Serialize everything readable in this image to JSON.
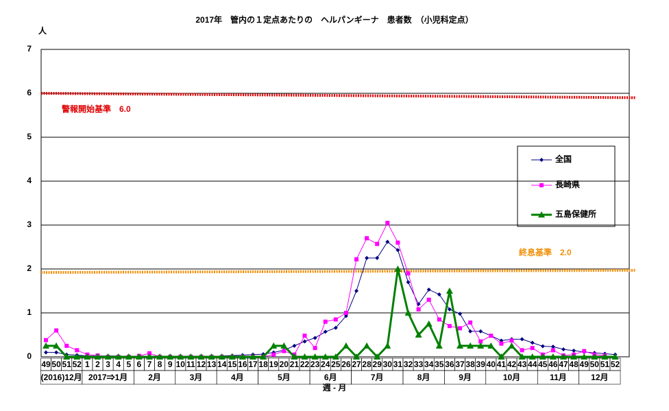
{
  "chart_data": {
    "type": "line",
    "title": "2017年　管内の１定点あたりの　ヘルパンギーナ　患者数　（小児科定点）",
    "y_label": "人",
    "x_label": "週 - 月",
    "categories": [
      "49",
      "50",
      "51",
      "52",
      "1",
      "2",
      "3",
      "4",
      "5",
      "6",
      "7",
      "8",
      "9",
      "10",
      "11",
      "12",
      "13",
      "14",
      "15",
      "16",
      "17",
      "18",
      "19",
      "20",
      "21",
      "22",
      "23",
      "24",
      "25",
      "26",
      "27",
      "28",
      "29",
      "30",
      "31",
      "32",
      "33",
      "34",
      "35",
      "36",
      "37",
      "38",
      "39",
      "40",
      "41",
      "42",
      "43",
      "44",
      "45",
      "46",
      "47",
      "48",
      "49",
      "50",
      "51",
      "52"
    ],
    "month_groups": [
      {
        "label": "(2016)12月",
        "weeks": 4
      },
      {
        "label": "2017⇒1月",
        "weeks": 5
      },
      {
        "label": "2月",
        "weeks": 4
      },
      {
        "label": "3月",
        "weeks": 4
      },
      {
        "label": "4月",
        "weeks": 4
      },
      {
        "label": "5月",
        "weeks": 5
      },
      {
        "label": "6月",
        "weeks": 4
      },
      {
        "label": "7月",
        "weeks": 5
      },
      {
        "label": "8月",
        "weeks": 4
      },
      {
        "label": "9月",
        "weeks": 4
      },
      {
        "label": "10月",
        "weeks": 5
      },
      {
        "label": "11月",
        "weeks": 4
      },
      {
        "label": "12月",
        "weeks": 4
      }
    ],
    "series": [
      {
        "name": "全国",
        "color": "#000080",
        "marker": "diamond",
        "values": [
          0.1,
          0.1,
          0.05,
          0.04,
          0.02,
          0.02,
          0.02,
          0.02,
          0.01,
          0.01,
          0.01,
          0.01,
          0.01,
          0.01,
          0.01,
          0.01,
          0.01,
          0.02,
          0.03,
          0.04,
          0.05,
          0.06,
          0.1,
          0.15,
          0.25,
          0.35,
          0.43,
          0.57,
          0.66,
          0.93,
          1.5,
          2.25,
          2.25,
          2.62,
          2.43,
          1.7,
          1.2,
          1.53,
          1.42,
          1.08,
          0.98,
          0.58,
          0.58,
          0.48,
          0.37,
          0.4,
          0.4,
          0.32,
          0.24,
          0.23,
          0.17,
          0.14,
          0.11,
          0.09,
          0.07,
          0.05
        ]
      },
      {
        "name": "長崎県",
        "color": "#ff00ff",
        "marker": "square",
        "values": [
          0.38,
          0.6,
          0.25,
          0.15,
          0.05,
          0.03,
          0,
          0,
          0,
          0.02,
          0.08,
          0,
          0,
          0,
          0,
          0,
          0,
          0,
          0,
          0,
          0,
          0,
          0.05,
          0.13,
          0.05,
          0.48,
          0.2,
          0.8,
          0.85,
          1.0,
          2.22,
          2.7,
          2.57,
          3.05,
          2.6,
          1.9,
          1.08,
          1.3,
          0.85,
          0.7,
          0.65,
          0.78,
          0.35,
          0.48,
          0.3,
          0.37,
          0.15,
          0.2,
          0.05,
          0.15,
          0.03,
          0.05,
          0.13,
          0.05,
          0.03,
          null
        ]
      },
      {
        "name": "五島保健所",
        "color": "#008000",
        "marker": "triangle",
        "values": [
          0.25,
          0.25,
          0,
          0,
          0,
          0,
          0,
          0,
          0,
          0,
          0,
          0,
          0,
          0,
          0,
          0,
          0,
          0,
          0,
          0,
          0,
          0,
          0.25,
          0.25,
          0,
          0,
          0,
          0,
          0,
          0.25,
          0,
          0.25,
          0,
          0.25,
          2.0,
          1.0,
          0.5,
          0.75,
          0.25,
          1.5,
          0.25,
          0.25,
          0.25,
          0.25,
          0,
          0.25,
          0,
          0,
          0,
          0,
          0,
          0,
          0,
          0,
          0,
          0
        ]
      }
    ],
    "reference_lines": [
      {
        "label": "警報開始基準　6.0",
        "color": "#e00000",
        "values": [
          6.0,
          5.9
        ]
      },
      {
        "label": "終息基準　2.0",
        "color": "#f0900a",
        "values": [
          1.92,
          1.97
        ]
      }
    ],
    "ylim": [
      0,
      7
    ],
    "yticks": [
      0,
      1,
      2,
      3,
      4,
      5,
      6,
      7
    ],
    "grid": true
  }
}
